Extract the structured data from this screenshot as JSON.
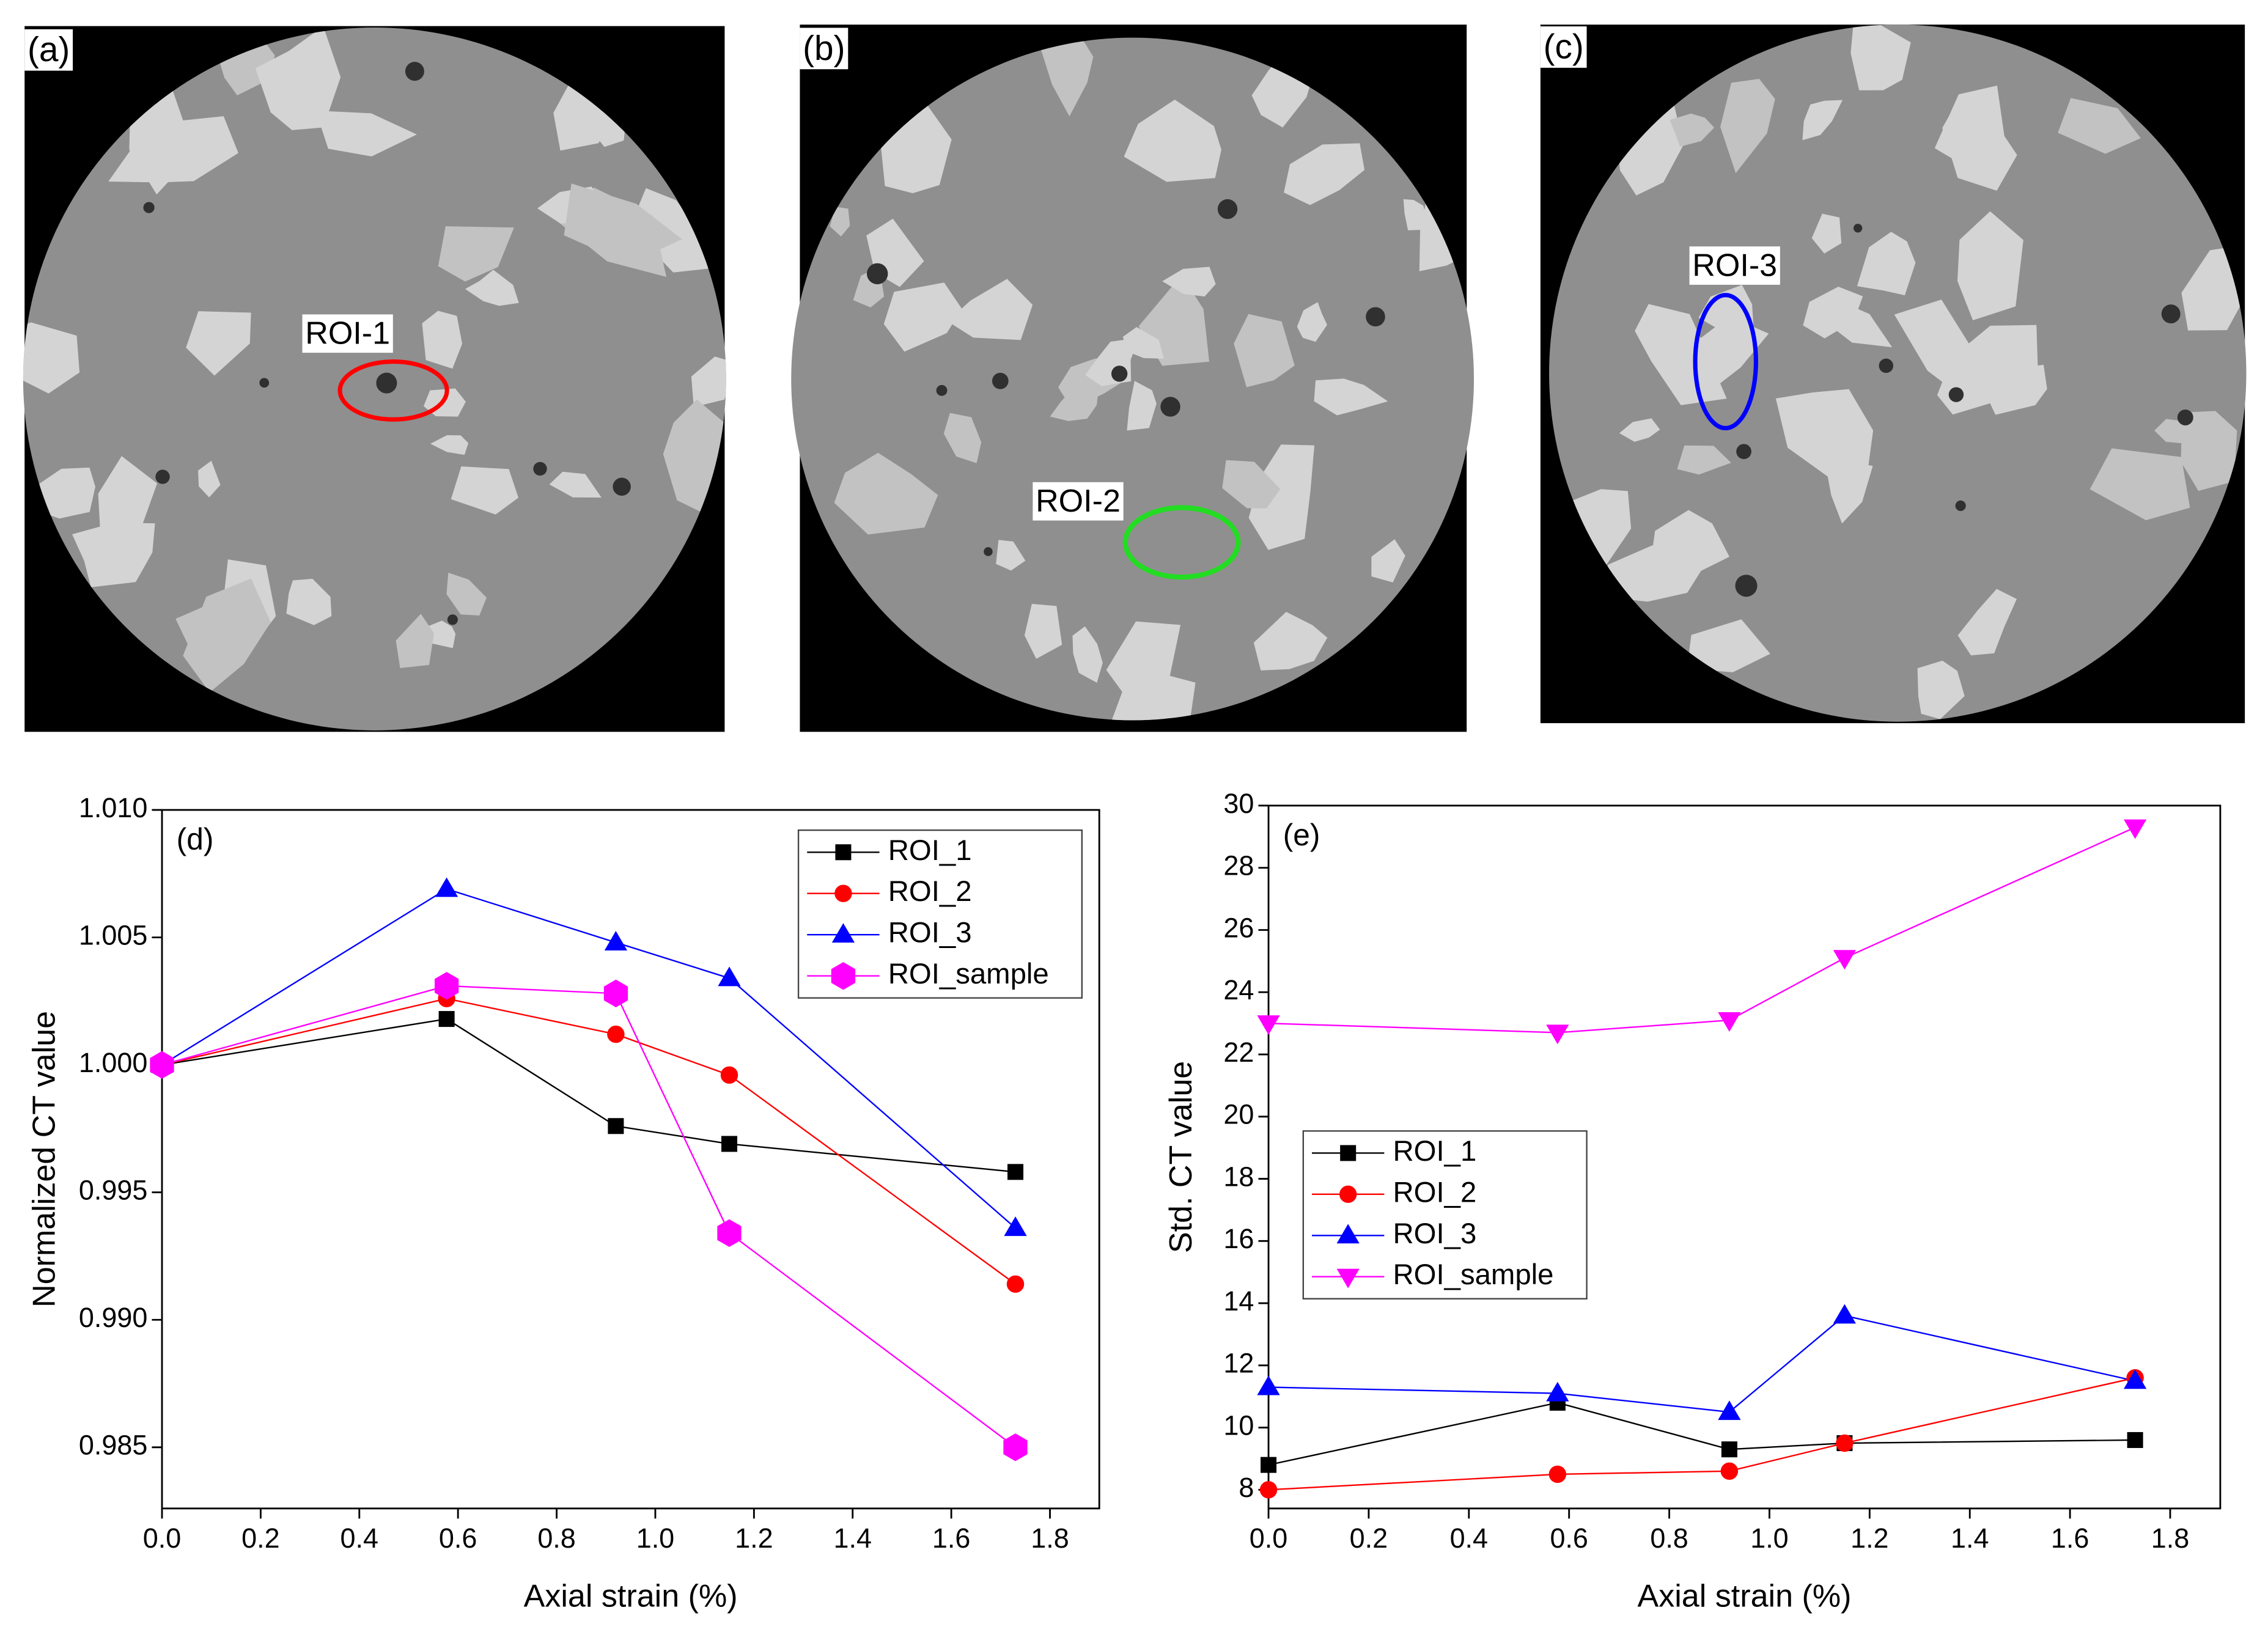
{
  "panels": [
    {
      "label": "(a)",
      "roi": "ROI-1"
    },
    {
      "label": "(b)",
      "roi": "ROI-2"
    },
    {
      "label": "(c)",
      "roi": "ROI-3"
    }
  ],
  "chart_data": [
    {
      "type": "line",
      "annotation": "(d)",
      "x_label": "Axial strain (%)",
      "y_label": "Normalized CT value",
      "x": [
        0,
        0.577,
        0.92,
        1.15,
        1.73
      ],
      "xlim": [
        0,
        1.9
      ],
      "ylim": [
        0.9826,
        1.01
      ],
      "xticks": [
        {
          "value": 0,
          "label": "0.0"
        },
        0.2,
        0.4,
        0.6,
        0.8,
        {
          "value": 1,
          "label": "1.0"
        },
        1.2,
        1.4,
        1.6,
        1.8
      ],
      "yticks": [
        0.985,
        {
          "value": 0.99,
          "label": "0.990"
        },
        0.995,
        {
          "value": 1,
          "label": "1.000"
        },
        1.005,
        {
          "value": 1.01,
          "label": "1.010"
        }
      ],
      "legend": "upper right",
      "series": [
        {
          "name": "ROI_1",
          "color": "#000000",
          "marker": "square",
          "values": [
            1.0,
            1.0018,
            0.9976,
            0.9969,
            0.9958
          ]
        },
        {
          "name": "ROI_2",
          "color": "#ff0000",
          "marker": "circle",
          "values": [
            1.0,
            1.0026,
            1.0012,
            0.9996,
            0.9914
          ]
        },
        {
          "name": "ROI_3",
          "color": "#0000ff",
          "marker": "triangle-up",
          "values": [
            1.0,
            1.0069,
            1.0048,
            1.0034,
            0.9936
          ]
        },
        {
          "name": "ROI_sample",
          "color": "#ff00ff",
          "marker": "hexagon",
          "values": [
            1.0,
            1.0031,
            1.0028,
            0.9934,
            0.985
          ]
        }
      ]
    },
    {
      "type": "line",
      "annotation": "(e)",
      "x_label": "Axial strain (%)",
      "y_label": "Std. CT value",
      "x": [
        0,
        0.577,
        0.92,
        1.15,
        1.73
      ],
      "xlim": [
        0,
        1.9
      ],
      "ylim": [
        7.4,
        30
      ],
      "xticks": [
        {
          "value": 0,
          "label": "0.0"
        },
        0.2,
        0.4,
        0.6,
        0.8,
        {
          "value": 1,
          "label": "1.0"
        },
        1.2,
        1.4,
        1.6,
        1.8
      ],
      "yticks": [
        8,
        10,
        12,
        14,
        16,
        18,
        20,
        22,
        24,
        26,
        28,
        30
      ],
      "legend": "center left",
      "series": [
        {
          "name": "ROI_1",
          "color": "#000000",
          "marker": "square",
          "values": [
            8.8,
            10.8,
            9.3,
            9.5,
            9.6
          ]
        },
        {
          "name": "ROI_2",
          "color": "#ff0000",
          "marker": "circle",
          "values": [
            8.0,
            8.5,
            8.6,
            9.5,
            11.6
          ]
        },
        {
          "name": "ROI_3",
          "color": "#0000ff",
          "marker": "triangle-up",
          "values": [
            11.3,
            11.1,
            10.5,
            13.6,
            11.5
          ]
        },
        {
          "name": "ROI_sample",
          "color": "#ff00ff",
          "marker": "triangle-down",
          "values": [
            23.0,
            22.7,
            23.1,
            25.1,
            29.3
          ]
        }
      ]
    }
  ]
}
